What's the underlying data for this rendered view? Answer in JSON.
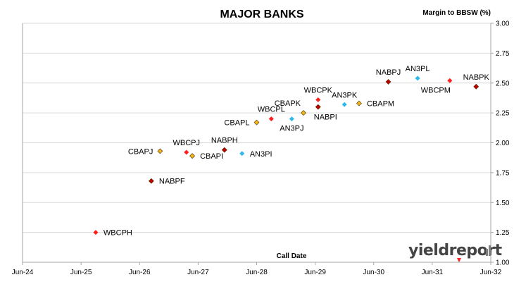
{
  "chart_data": {
    "type": "scatter",
    "title": "MAJOR BANKS",
    "ylabel": "Margin to BBSW (%)",
    "xlabel": "Call Date",
    "x_ticks": [
      "Jun-24",
      "Jun-25",
      "Jun-26",
      "Jun-27",
      "Jun-28",
      "Jun-29",
      "Jun-30",
      "Jun-31",
      "Jun-32"
    ],
    "y_ticks": [
      "1.00",
      "1.25",
      "1.50",
      "1.75",
      "2.00",
      "2.25",
      "2.50",
      "2.75",
      "3.00"
    ],
    "ylim": [
      1.0,
      3.0
    ],
    "xlim": [
      2024.5,
      2032.5
    ],
    "y_axis_side": "right",
    "grid": "horizontal",
    "colors": {
      "WBC": "#ff1f1f",
      "NAB": "#c00000",
      "CBA": "#f2b618",
      "AN3": "#2fb8e8",
      "grid": "#d9d9d9",
      "axis": "#a6a6a6"
    },
    "points": [
      {
        "name": "WBCPH",
        "x": 2025.75,
        "y": 1.25,
        "issuer": "WBC",
        "label_pos": "right"
      },
      {
        "name": "NABPF",
        "x": 2026.7,
        "y": 1.68,
        "issuer": "NAB",
        "label_pos": "right"
      },
      {
        "name": "CBAPJ",
        "x": 2026.85,
        "y": 1.93,
        "issuer": "CBA",
        "label_pos": "left"
      },
      {
        "name": "WBCPJ",
        "x": 2027.3,
        "y": 1.92,
        "issuer": "WBC",
        "label_pos": "above"
      },
      {
        "name": "CBAPI",
        "x": 2027.4,
        "y": 1.89,
        "issuer": "CBA",
        "label_pos": "right"
      },
      {
        "name": "NABPH",
        "x": 2027.95,
        "y": 1.94,
        "issuer": "NAB",
        "label_pos": "above"
      },
      {
        "name": "AN3PI",
        "x": 2028.25,
        "y": 1.91,
        "issuer": "AN3",
        "label_pos": "right"
      },
      {
        "name": "CBAPL",
        "x": 2028.5,
        "y": 2.17,
        "issuer": "CBA",
        "label_pos": "left"
      },
      {
        "name": "WBCPL",
        "x": 2028.75,
        "y": 2.2,
        "issuer": "WBC",
        "label_pos": "above"
      },
      {
        "name": "AN3PJ",
        "x": 2029.1,
        "y": 2.2,
        "issuer": "AN3",
        "label_pos": "below"
      },
      {
        "name": "CBAPK",
        "x": 2029.3,
        "y": 2.25,
        "issuer": "CBA",
        "label_pos": "aboveleft"
      },
      {
        "name": "WBCPK",
        "x": 2029.55,
        "y": 2.36,
        "issuer": "WBC",
        "label_pos": "above"
      },
      {
        "name": "NABPI",
        "x": 2029.55,
        "y": 2.3,
        "issuer": "NAB",
        "label_pos": "belowright"
      },
      {
        "name": "AN3PK",
        "x": 2030.0,
        "y": 2.32,
        "issuer": "AN3",
        "label_pos": "above"
      },
      {
        "name": "CBAPM",
        "x": 2030.25,
        "y": 2.33,
        "issuer": "CBA",
        "label_pos": "right"
      },
      {
        "name": "NABPJ",
        "x": 2030.75,
        "y": 2.51,
        "issuer": "NAB",
        "label_pos": "above"
      },
      {
        "name": "AN3PL",
        "x": 2031.25,
        "y": 2.54,
        "issuer": "AN3",
        "label_pos": "above"
      },
      {
        "name": "WBCPM",
        "x": 2031.8,
        "y": 2.52,
        "issuer": "WBC",
        "label_pos": "belowleft"
      },
      {
        "name": "NABPK",
        "x": 2032.25,
        "y": 2.47,
        "issuer": "NAB",
        "label_pos": "above"
      }
    ]
  },
  "branding": {
    "logo_text": "yieldreport",
    "logo_icon": "bar-chart-icon"
  }
}
